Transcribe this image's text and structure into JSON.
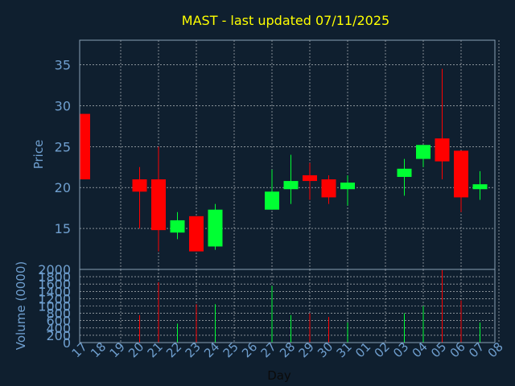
{
  "chart_data": {
    "type": "candlestick",
    "title": "MAST - last updated 07/11/2025",
    "xlabel": "Day",
    "price_ylabel": "Price",
    "volume_ylabel": "Volume (0000)",
    "price_ylim": [
      10,
      38
    ],
    "price_yticks": [
      "15",
      "20",
      "25",
      "30",
      "35"
    ],
    "volume_ylim": [
      0,
      2000
    ],
    "volume_yticks": [
      "0",
      "200",
      "400",
      "600",
      "800",
      "1000",
      "1200",
      "1400",
      "1600",
      "1800",
      "2000"
    ],
    "grid": true,
    "colors": {
      "background": "#0f1f2f",
      "up": "#00ff33",
      "down": "#ff0000",
      "title": "#ffff00",
      "axis_text": "#6f9fcf",
      "grid": "#ffffff"
    },
    "x_ticks": [
      "17",
      "18",
      "19",
      "20",
      "21",
      "22",
      "23",
      "24",
      "25",
      "26",
      "27",
      "28",
      "29",
      "30",
      "31",
      "01",
      "02",
      "03",
      "04",
      "05",
      "06",
      "07",
      "08"
    ],
    "candles": [
      {
        "day": "17",
        "open": 29.0,
        "close": 21.0,
        "high": 29.0,
        "low": 21.0,
        "volume": 0
      },
      {
        "day": "20",
        "open": 21.0,
        "close": 19.5,
        "high": 22.5,
        "low": 15.0,
        "volume": 750
      },
      {
        "day": "21",
        "open": 21.0,
        "close": 14.8,
        "high": 25.0,
        "low": 12.2,
        "volume": 1650
      },
      {
        "day": "22",
        "open": 14.5,
        "close": 16.0,
        "high": 17.0,
        "low": 13.7,
        "volume": 520
      },
      {
        "day": "23",
        "open": 16.5,
        "close": 12.2,
        "high": 16.5,
        "low": 12.2,
        "volume": 1050
      },
      {
        "day": "24",
        "open": 12.8,
        "close": 17.3,
        "high": 18.0,
        "low": 12.4,
        "volume": 1050
      },
      {
        "day": "27",
        "open": 17.3,
        "close": 19.5,
        "high": 22.2,
        "low": 17.3,
        "volume": 1550
      },
      {
        "day": "28",
        "open": 19.8,
        "close": 20.8,
        "high": 24.0,
        "low": 18.0,
        "volume": 750
      },
      {
        "day": "29",
        "open": 21.5,
        "close": 20.8,
        "high": 23.0,
        "low": 18.5,
        "volume": 800
      },
      {
        "day": "30",
        "open": 21.0,
        "close": 18.8,
        "high": 21.5,
        "low": 18.0,
        "volume": 700
      },
      {
        "day": "31",
        "open": 19.8,
        "close": 20.6,
        "high": 21.5,
        "low": 17.8,
        "volume": 550
      },
      {
        "day": "03",
        "open": 21.3,
        "close": 22.3,
        "high": 23.5,
        "low": 19.0,
        "volume": 800
      },
      {
        "day": "04",
        "open": 23.5,
        "close": 25.2,
        "high": 25.2,
        "low": 22.5,
        "volume": 1000
      },
      {
        "day": "05",
        "open": 26.0,
        "close": 23.2,
        "high": 34.5,
        "low": 21.0,
        "volume": 1980
      },
      {
        "day": "06",
        "open": 24.5,
        "close": 18.8,
        "high": 24.5,
        "low": 17.0,
        "volume": 1150
      },
      {
        "day": "07",
        "open": 19.8,
        "close": 20.4,
        "high": 22.0,
        "low": 18.5,
        "volume": 550
      }
    ]
  }
}
